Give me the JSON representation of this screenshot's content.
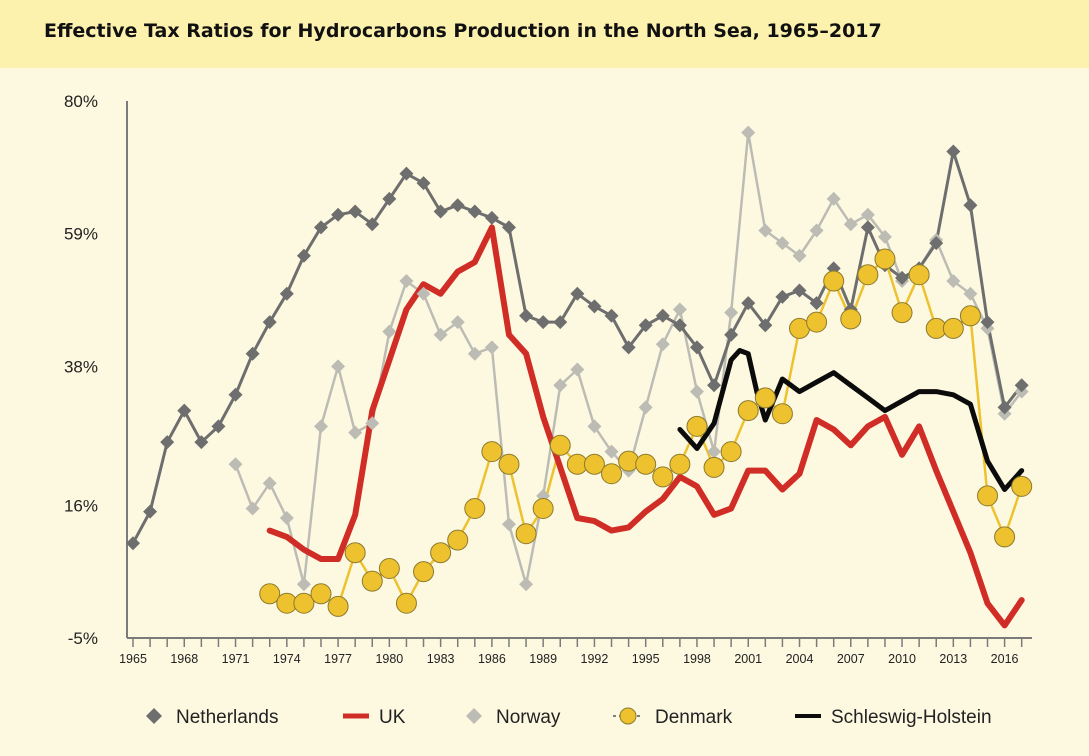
{
  "chart_data": {
    "type": "line",
    "title": "Effective Tax Ratios for Hydrocarbons Production in the North Sea, 1965–2017",
    "xlabel": "",
    "ylabel": "",
    "xlim": [
      1965,
      2017
    ],
    "ylim": [
      -5,
      80
    ],
    "y_ticks": [
      -5,
      16,
      38,
      59,
      80
    ],
    "y_tick_labels": [
      "-5%",
      "16%",
      "38%",
      "59%",
      "80%"
    ],
    "x_ticks": [
      1965,
      1968,
      1971,
      1974,
      1977,
      1980,
      1983,
      1986,
      1989,
      1992,
      1995,
      1998,
      2001,
      2004,
      2007,
      2010,
      2013,
      2016
    ],
    "x_tick_labels": [
      "1965",
      "1968",
      "1971",
      "1974",
      "1977",
      "1980",
      "1983",
      "1986",
      "1989",
      "1992",
      "1995",
      "1998",
      "2001",
      "2004",
      "2007",
      "2010",
      "2013",
      "2016"
    ],
    "grid": false,
    "legend_position": "bottom",
    "series": [
      {
        "name": "Netherlands",
        "color": "#6e6e6e",
        "marker": "diamond",
        "x": [
          1965,
          1966,
          1967,
          1968,
          1969,
          1970,
          1971,
          1972,
          1973,
          1974,
          1975,
          1976,
          1977,
          1978,
          1979,
          1980,
          1981,
          1982,
          1983,
          1984,
          1985,
          1986,
          1987,
          1988,
          1989,
          1990,
          1991,
          1992,
          1993,
          1994,
          1995,
          1996,
          1997,
          1998,
          1999,
          2000,
          2001,
          2002,
          2003,
          2004,
          2005,
          2006,
          2007,
          2008,
          2009,
          2010,
          2011,
          2012,
          2013,
          2014,
          2015,
          2016,
          2017
        ],
        "y": [
          10,
          15,
          26,
          31,
          26,
          28.5,
          33.5,
          40,
          45,
          49.5,
          55.5,
          60,
          62,
          62.5,
          60.5,
          64.5,
          68.5,
          67,
          62.5,
          63.5,
          62.5,
          61.5,
          60,
          46,
          45,
          45,
          49.5,
          47.5,
          46,
          41,
          44.5,
          46,
          44.5,
          41,
          35,
          43,
          48,
          44.5,
          49,
          50,
          48,
          53.5,
          47,
          60,
          54,
          52,
          53.5,
          57.5,
          72,
          63.5,
          45,
          31.5,
          35
        ]
      },
      {
        "name": "UK",
        "color": "#d12d27",
        "marker": "none",
        "x": [
          1973,
          1974,
          1975,
          1976,
          1977,
          1978,
          1979,
          1980,
          1981,
          1982,
          1983,
          1984,
          1985,
          1986,
          1987,
          1988,
          1989,
          1990,
          1991,
          1992,
          1993,
          1994,
          1995,
          1996,
          1997,
          1998,
          1999,
          2000,
          2001,
          2002,
          2003,
          2004,
          2005,
          2006,
          2007,
          2008,
          2009,
          2010,
          2011,
          2012,
          2013,
          2014,
          2015,
          2016,
          2017
        ],
        "y": [
          12,
          11,
          9,
          7.5,
          7.5,
          14.5,
          31,
          39,
          47,
          51,
          49.5,
          53,
          54.5,
          60,
          43,
          40,
          30,
          22,
          14,
          13.5,
          12,
          12.5,
          15,
          17,
          20.5,
          19,
          14.5,
          15.5,
          21.5,
          21.5,
          18.5,
          21,
          29.5,
          28,
          25.5,
          28.5,
          30,
          24,
          28.5,
          21.5,
          15,
          8.5,
          0.5,
          -3,
          1
        ]
      },
      {
        "name": "Norway",
        "color": "#bcbcb4",
        "marker": "diamond",
        "x": [
          1971,
          1972,
          1973,
          1974,
          1975,
          1976,
          1977,
          1978,
          1979,
          1980,
          1981,
          1982,
          1983,
          1984,
          1985,
          1986,
          1987,
          1988,
          1989,
          1990,
          1991,
          1992,
          1993,
          1994,
          1995,
          1996,
          1997,
          1998,
          1999,
          2000,
          2001,
          2002,
          2003,
          2004,
          2005,
          2006,
          2007,
          2008,
          2009,
          2010,
          2011,
          2012,
          2013,
          2014,
          2015,
          2016,
          2017
        ],
        "y": [
          22.5,
          15.5,
          19.5,
          14,
          3.5,
          28.5,
          38,
          27.5,
          29,
          43.5,
          51.5,
          49.5,
          43,
          45,
          40,
          41,
          13,
          3.5,
          17.5,
          35,
          37.5,
          28.5,
          24.5,
          21.5,
          31.5,
          41.5,
          47,
          34,
          24.5,
          46.5,
          75,
          59.5,
          57.5,
          55.5,
          59.5,
          64.5,
          60.5,
          62,
          58.5,
          51.5,
          53.5,
          58,
          51.5,
          49.5,
          44,
          30.5,
          34
        ]
      },
      {
        "name": "Denmark",
        "color": "#eec12f",
        "marker": "circle",
        "x": [
          1973,
          1974,
          1975,
          1976,
          1977,
          1978,
          1979,
          1980,
          1981,
          1982,
          1983,
          1984,
          1985,
          1986,
          1987,
          1988,
          1989,
          1990,
          1991,
          1992,
          1993,
          1994,
          1995,
          1996,
          1997,
          1998,
          1999,
          2000,
          2001,
          2002,
          2003,
          2004,
          2005,
          2006,
          2007,
          2008,
          2009,
          2010,
          2011,
          2012,
          2013,
          2014,
          2015,
          2016,
          2017
        ],
        "y": [
          2,
          0.5,
          0.5,
          2,
          0,
          8.5,
          4,
          6,
          0.5,
          5.5,
          8.5,
          10.5,
          15.5,
          24.5,
          22.5,
          11.5,
          15.5,
          25.5,
          22.5,
          22.5,
          21,
          23,
          22.5,
          20.5,
          22.5,
          28.5,
          22,
          24.5,
          31,
          33,
          30.5,
          44,
          45,
          51.5,
          45.5,
          52.5,
          55,
          46.5,
          52.5,
          44,
          44,
          46,
          17.5,
          11,
          19
        ]
      },
      {
        "name": "Schleswig-Holstein",
        "color": "#0b0b0b",
        "marker": "none",
        "x": [
          1997,
          1998,
          1999,
          2000,
          2000.5,
          2001,
          2001.5,
          2002,
          2003,
          2004,
          2005,
          2006,
          2007,
          2008,
          2009,
          2010,
          2011,
          2012,
          2013,
          2014,
          2015,
          2016,
          2017
        ],
        "y": [
          28,
          25,
          29,
          39,
          40.5,
          40,
          34,
          29.5,
          36,
          34,
          35.5,
          37,
          35,
          33,
          31,
          32.5,
          34,
          34,
          33.5,
          32,
          23,
          18.5,
          21.5
        ]
      }
    ]
  }
}
